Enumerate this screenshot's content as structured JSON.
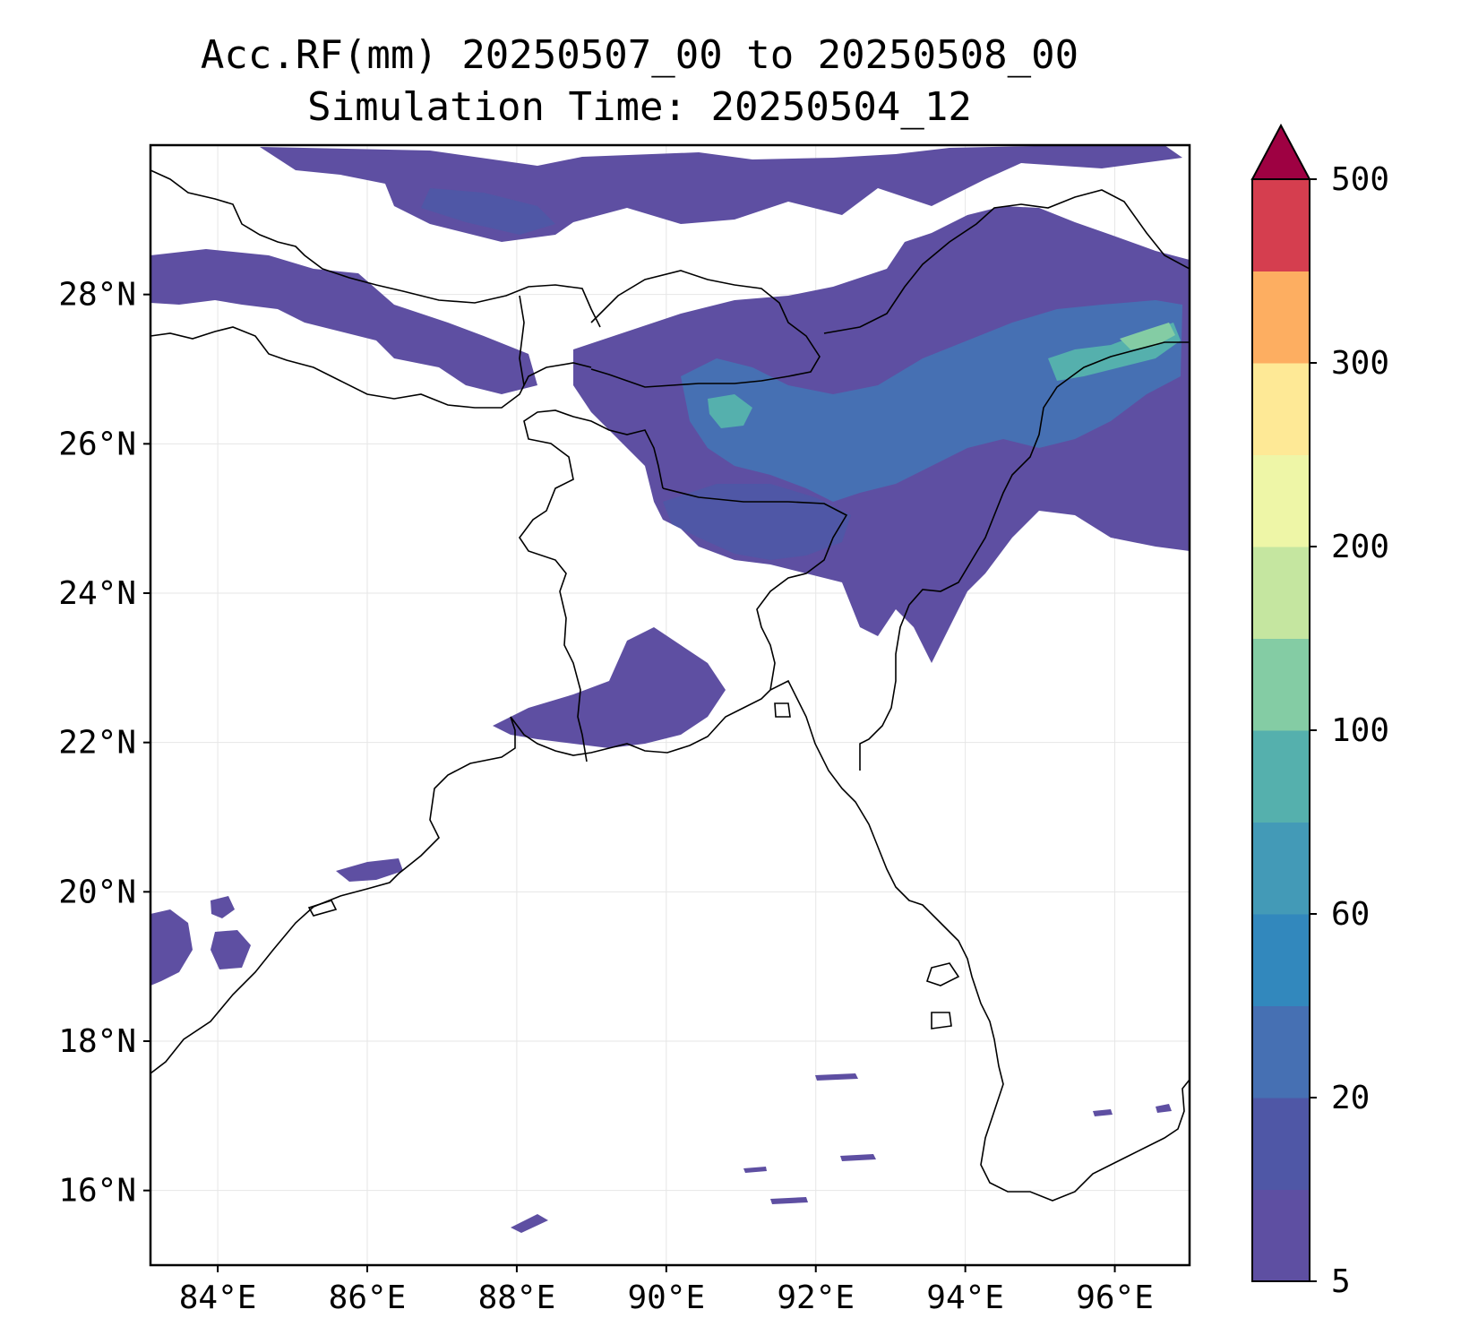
{
  "title_line1": "Acc.RF(mm) 20250507_00 to 20250508_00",
  "title_line2": "Simulation Time: 20250504_12",
  "map": {
    "lon_range": [
      83.1,
      97.0
    ],
    "lat_range": [
      15.0,
      30.0
    ],
    "lon_ticks": [
      "84°E",
      "86°E",
      "88°E",
      "90°E",
      "92°E",
      "94°E",
      "96°E"
    ],
    "lat_ticks": [
      "16°N",
      "18°N",
      "20°N",
      "22°N",
      "24°N",
      "26°N",
      "28°N"
    ],
    "grid": true
  },
  "colorbar": {
    "tick_labels": [
      "5",
      "20",
      "60",
      "100",
      "200",
      "300",
      "500"
    ],
    "extend": "max",
    "colors": [
      "#5e4fa2",
      "#4f57a6",
      "#4670b3",
      "#3288bd",
      "#439ab7",
      "#55b0ad",
      "#84cca4",
      "#c5e6a0",
      "#eef6a7",
      "#fee996",
      "#fdae61",
      "#d53e4f",
      "#9e0142"
    ]
  }
}
